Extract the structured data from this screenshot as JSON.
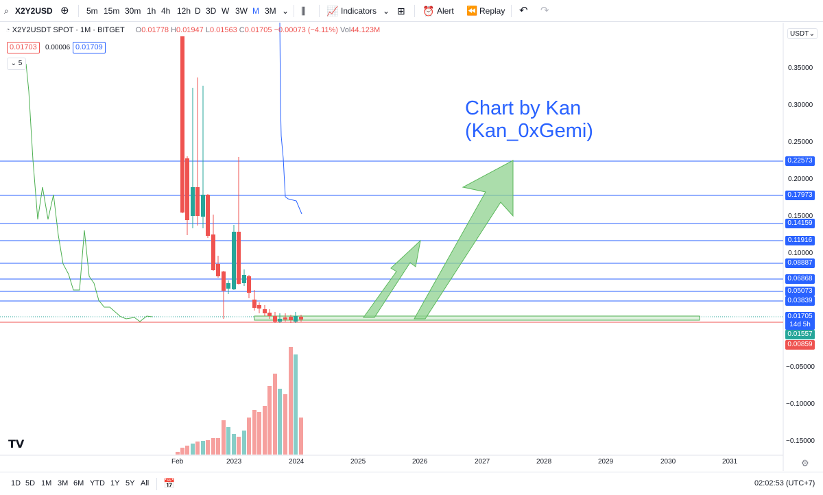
{
  "toolbar": {
    "symbol": "X2Y2USD",
    "intervals": [
      "5m",
      "15m",
      "30m",
      "1h",
      "4h",
      "12h",
      "D",
      "3D",
      "W",
      "3W",
      "M",
      "3M"
    ],
    "active_interval": "M",
    "indicators_label": "Indicators",
    "alert_label": "Alert",
    "replay_label": "Replay"
  },
  "legend": {
    "title": "X2Y2USDT SPOT · 1M · BITGET",
    "o_label": "O",
    "o": "0.01778",
    "h_label": "H",
    "h": "0.01947",
    "l_label": "L",
    "l": "0.01563",
    "c_label": "C",
    "c": "0.01705",
    "change": "−0.00073 (−4.11%)",
    "vol_label": "Vol",
    "vol": "44.123M",
    "bid": "0.01703",
    "spread": "0.00006",
    "ask": "0.01709",
    "collapsed_count": "5"
  },
  "price_axis": {
    "currency": "USDT",
    "ticks": [
      "0.35000",
      "0.30000",
      "0.25000",
      "0.20000",
      "0.15000",
      "0.10000",
      "−0.05000",
      "−0.10000",
      "−0.15000"
    ],
    "tags": [
      {
        "text": "0.22573",
        "color": "#2962ff"
      },
      {
        "text": "0.17973",
        "color": "#2962ff"
      },
      {
        "text": "0.14159",
        "color": "#2962ff"
      },
      {
        "text": "0.11916",
        "color": "#2962ff"
      },
      {
        "text": "0.08887",
        "color": "#2962ff"
      },
      {
        "text": "0.06868",
        "color": "#2962ff"
      },
      {
        "text": "0.05073",
        "color": "#2962ff"
      },
      {
        "text": "0.03839",
        "color": "#2962ff"
      },
      {
        "text": "0.01705",
        "color": "#2962ff"
      },
      {
        "text": "14d 5h",
        "color": "#2962ff"
      },
      {
        "text": "0.01557",
        "color": "#26a69a"
      },
      {
        "text": "0.00859",
        "color": "#ef5350"
      }
    ]
  },
  "time_axis": {
    "labels": [
      "Feb",
      "2023",
      "2024",
      "2025",
      "2026",
      "2027",
      "2028",
      "2029",
      "2030",
      "2031"
    ]
  },
  "annotation": {
    "line1": "Chart by Kan",
    "line2": "(Kan_0xGemi)"
  },
  "bottom": {
    "ranges": [
      "1D",
      "5D",
      "1M",
      "3M",
      "6M",
      "YTD",
      "1Y",
      "5Y",
      "All"
    ],
    "clock": "02:02:53 (UTC+7)"
  },
  "colors": {
    "up": "#26a69a",
    "down": "#ef5350",
    "level_line": "#2962ff",
    "arrow_fill": "#8fd18f",
    "accent": "#2962ff"
  }
}
